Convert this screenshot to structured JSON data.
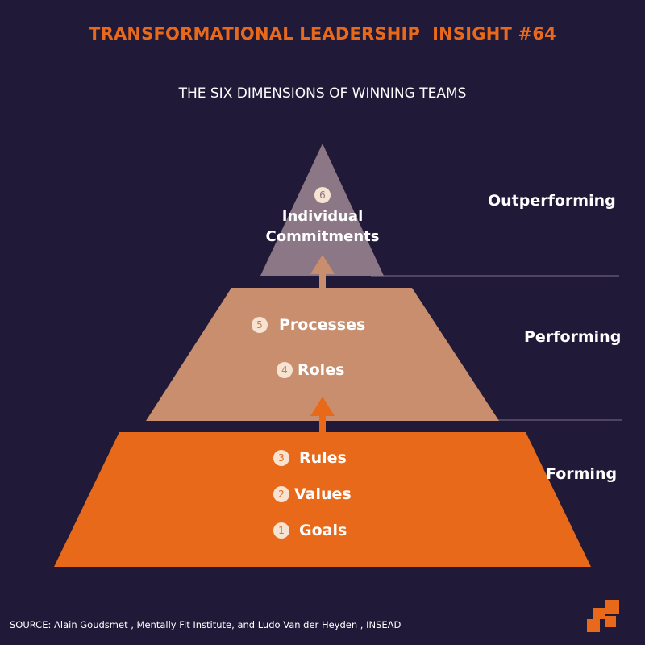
{
  "header": {
    "title": "TRANSFORMATIONAL LEADERSHIP  INSIGHT #64",
    "subtitle": "THE SIX DIMENSIONS OF WINNING TEAMS"
  },
  "pyramid": {
    "top": {
      "stage": "Outperforming",
      "color": "#8b7785",
      "items": [
        {
          "number": "6",
          "label": "Individual Commitments"
        }
      ]
    },
    "middle": {
      "stage": "Performing",
      "color": "#c98e6e",
      "items": [
        {
          "number": "5",
          "label": "Processes"
        },
        {
          "number": "4",
          "label": "Roles"
        }
      ]
    },
    "bottom": {
      "stage": "Forming",
      "color": "#e8691a",
      "items": [
        {
          "number": "3",
          "label": "Rules"
        },
        {
          "number": "2",
          "label": "Values"
        },
        {
          "number": "1",
          "label": "Goals"
        }
      ]
    }
  },
  "footer": {
    "source": "SOURCE: Alain Goudsmet , Mentally Fit Institute, and Ludo Van der Heyden , INSEAD"
  },
  "colors": {
    "background": "#201a38",
    "accent": "#e8691a",
    "arrow_upper": "#c98e6e"
  }
}
